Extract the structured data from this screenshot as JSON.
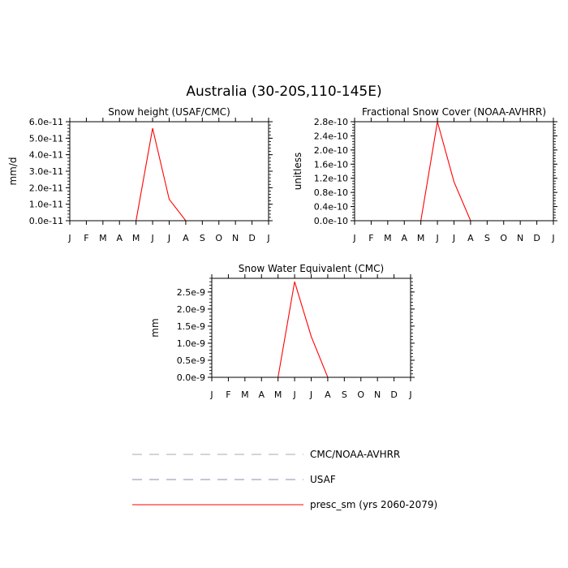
{
  "figure": {
    "title": "Australia (30-20S,110-145E)"
  },
  "legend": {
    "position": "bottom-center",
    "entries": [
      {
        "label": "CMC/NOAA-AVHRR",
        "color": "#a8a8a8",
        "style": "dashed"
      },
      {
        "label": "USAF",
        "color": "#8c8ca8",
        "style": "dashed"
      },
      {
        "label": "presc_sm (yrs 2060-2079)",
        "color": "#ff0000",
        "style": "solid"
      }
    ]
  },
  "chart_data": [
    {
      "type": "line",
      "title": "Snow height (USAF/CMC)",
      "xlabel": "",
      "ylabel": "mm/d",
      "categories": [
        "J",
        "F",
        "M",
        "A",
        "M",
        "J",
        "J",
        "A",
        "S",
        "O",
        "N",
        "D",
        "J"
      ],
      "ylim": [
        0,
        6e-11
      ],
      "yticks": [
        0,
        1e-11,
        2e-11,
        3e-11,
        4e-11,
        5e-11,
        6e-11
      ],
      "ytick_labels": [
        "0.0e-11",
        "1.0e-11",
        "2.0e-11",
        "3.0e-11",
        "4.0e-11",
        "5.0e-11",
        "6.0e-11"
      ],
      "grid": false,
      "series": [
        {
          "name": "presc_sm (yrs 2060-2079)",
          "color": "#ff0000",
          "style": "solid",
          "values": [
            0,
            0,
            0,
            0,
            0,
            5.6e-11,
            1.3e-11,
            0,
            0,
            0,
            0,
            0,
            0
          ]
        },
        {
          "name": "USAF",
          "color": "#8c8ca8",
          "style": "dashed",
          "values": [
            0,
            0,
            0,
            0,
            0,
            0,
            0,
            0,
            0,
            0,
            0,
            0,
            0
          ]
        },
        {
          "name": "CMC/NOAA-AVHRR",
          "color": "#a8a8a8",
          "style": "dashed",
          "values": [
            0,
            0,
            0,
            0,
            0,
            0,
            0,
            0,
            0,
            0,
            0,
            0,
            0
          ]
        }
      ]
    },
    {
      "type": "line",
      "title": "Fractional Snow Cover (NOAA-AVHRR)",
      "xlabel": "",
      "ylabel": "unitless",
      "categories": [
        "J",
        "F",
        "M",
        "A",
        "M",
        "J",
        "J",
        "A",
        "S",
        "O",
        "N",
        "D",
        "J"
      ],
      "ylim": [
        0,
        2.8e-10
      ],
      "yticks": [
        0,
        4e-11,
        8e-11,
        1.2e-10,
        1.6e-10,
        2e-10,
        2.4e-10,
        2.8e-10
      ],
      "ytick_labels": [
        "0.0e-10",
        "0.4e-10",
        "0.8e-10",
        "1.2e-10",
        "1.6e-10",
        "2.0e-10",
        "2.4e-10",
        "2.8e-10"
      ],
      "grid": false,
      "series": [
        {
          "name": "presc_sm (yrs 2060-2079)",
          "color": "#ff0000",
          "style": "solid",
          "values": [
            0,
            0,
            0,
            0,
            0,
            2.8e-10,
            1.1e-10,
            0,
            0,
            0,
            0,
            0,
            0
          ]
        },
        {
          "name": "CMC/NOAA-AVHRR",
          "color": "#a8a8a8",
          "style": "dashed",
          "values": [
            0,
            0,
            0,
            0,
            0,
            0,
            0,
            0,
            0,
            0,
            0,
            0,
            0
          ]
        }
      ]
    },
    {
      "type": "line",
      "title": "Snow Water Equivalent (CMC)",
      "xlabel": "",
      "ylabel": "mm",
      "categories": [
        "J",
        "F",
        "M",
        "A",
        "M",
        "J",
        "J",
        "A",
        "S",
        "O",
        "N",
        "D",
        "J"
      ],
      "ylim": [
        0,
        2.9e-09
      ],
      "yticks": [
        0,
        5e-10,
        1e-09,
        1.5e-09,
        2e-09,
        2.5e-09
      ],
      "ytick_labels": [
        "0.0e-9",
        "0.5e-9",
        "1.0e-9",
        "1.5e-9",
        "2.0e-9",
        "2.5e-9"
      ],
      "grid": false,
      "series": [
        {
          "name": "presc_sm (yrs 2060-2079)",
          "color": "#ff0000",
          "style": "solid",
          "values": [
            0,
            0,
            0,
            0,
            0,
            2.8e-09,
            1.2e-09,
            0,
            0,
            0,
            0,
            0,
            0
          ]
        },
        {
          "name": "CMC/NOAA-AVHRR",
          "color": "#a8a8a8",
          "style": "dashed",
          "values": [
            0,
            0,
            0,
            0,
            0,
            0,
            0,
            0,
            0,
            0,
            0,
            0,
            0
          ]
        }
      ]
    }
  ]
}
